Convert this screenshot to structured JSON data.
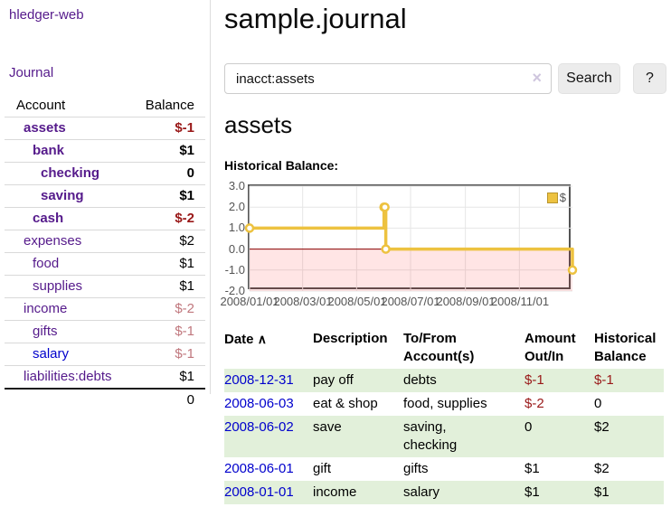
{
  "palette": {
    "link_purple": "#551a8b",
    "link_blue": "#0000cc",
    "negative_strong": "#991818",
    "negative_soft": "#c0777d",
    "row_stripe_green": "#e2f0da",
    "chart_gold": "#edc240",
    "chart_border": "#545454"
  },
  "sidebar": {
    "app_title": "hledger-web",
    "journal_link": "Journal",
    "accounts_header": {
      "account": "Account",
      "balance": "Balance"
    },
    "rows": [
      {
        "name": "assets",
        "balance": "$-1",
        "name_class": "lvl1 emph",
        "balance_class": "emph neg"
      },
      {
        "name": "bank",
        "balance": "$1",
        "name_class": "lvl2 emph",
        "balance_class": "emph"
      },
      {
        "name": "checking",
        "balance": "0",
        "name_class": "lvl3 emph",
        "balance_class": "emph"
      },
      {
        "name": "saving",
        "balance": "$1",
        "name_class": "lvl3 emph",
        "balance_class": "emph"
      },
      {
        "name": "cash",
        "balance": "$-2",
        "name_class": "lvl2 emph",
        "balance_class": "emph neg"
      },
      {
        "name": "expenses",
        "balance": "$2",
        "name_class": "lvl1",
        "balance_class": ""
      },
      {
        "name": "food",
        "balance": "$1",
        "name_class": "lvl2",
        "balance_class": ""
      },
      {
        "name": "supplies",
        "balance": "$1",
        "name_class": "lvl2",
        "balance_class": ""
      },
      {
        "name": "income",
        "balance": "$-2",
        "name_class": "lvl1",
        "balance_class": "negsoft"
      },
      {
        "name": "gifts",
        "balance": "$-1",
        "name_class": "lvl2",
        "balance_class": "negsoft"
      },
      {
        "name": "salary",
        "balance": "$-1",
        "name_class": "lvl2 blue",
        "balance_class": "negsoft"
      },
      {
        "name": "liabilities:debts",
        "balance": "$1",
        "name_class": "lvl1",
        "balance_class": ""
      }
    ],
    "total": "0"
  },
  "header": {
    "title": "sample.journal"
  },
  "search": {
    "value": "inacct:assets",
    "button_label": "Search",
    "help_label": "?",
    "clear_icon_glyph": "×"
  },
  "main": {
    "account_heading": "assets"
  },
  "chart_data": {
    "type": "line",
    "title": "Historical Balance:",
    "step": true,
    "x_range": [
      "2008-01-01",
      "2008-12-31"
    ],
    "ylim": [
      -2,
      3
    ],
    "yticks": [
      3,
      2,
      1,
      0,
      -1,
      -2
    ],
    "ytick_labels": [
      "3.0",
      "2.0",
      "1.0",
      "0.0",
      "-1.0",
      "-2.0"
    ],
    "xtick_labels": [
      "2008/01/01",
      "2008/03/01",
      "2008/05/01",
      "2008/07/01",
      "2008/09/01",
      "2008/11/01"
    ],
    "series": [
      {
        "name": "$",
        "color": "#edc240",
        "points": [
          [
            "2008-01-01",
            1
          ],
          [
            "2008-06-01",
            2
          ],
          [
            "2008-06-02",
            2
          ],
          [
            "2008-06-03",
            0
          ],
          [
            "2008-12-31",
            -1
          ]
        ]
      }
    ],
    "legend": "$",
    "legend_position": "top-right",
    "grid": true,
    "grid_color": "#e6e6e6",
    "negative_region_fill": "rgba(255,0,0,0.10)",
    "zero_line_color": "#8b0000"
  },
  "register": {
    "headers": {
      "date": "Date",
      "sort_icon": "∧",
      "description": "Description",
      "account_line1": "To/From",
      "account_line2": "Account(s)",
      "amount_line1": "Amount",
      "amount_line2": "Out/In",
      "balance_line1": "Historical",
      "balance_line2": "Balance"
    },
    "rows": [
      {
        "date": "2008-12-31",
        "description": "pay off",
        "accounts": "debts",
        "amount": "$-1",
        "amount_class": "neg",
        "balance": "$-1",
        "balance_class": "neg"
      },
      {
        "date": "2008-06-03",
        "description": "eat & shop",
        "accounts": "food, supplies",
        "amount": "$-2",
        "amount_class": "neg",
        "balance": "0",
        "balance_class": ""
      },
      {
        "date": "2008-06-02",
        "description": "save",
        "accounts": "saving,\nchecking",
        "amount": "0",
        "amount_class": "",
        "balance": "$2",
        "balance_class": ""
      },
      {
        "date": "2008-06-01",
        "description": "gift",
        "accounts": "gifts",
        "amount": "$1",
        "amount_class": "",
        "balance": "$2",
        "balance_class": ""
      },
      {
        "date": "2008-01-01",
        "description": "income",
        "accounts": "salary",
        "amount": "$1",
        "amount_class": "",
        "balance": "$1",
        "balance_class": ""
      }
    ]
  }
}
